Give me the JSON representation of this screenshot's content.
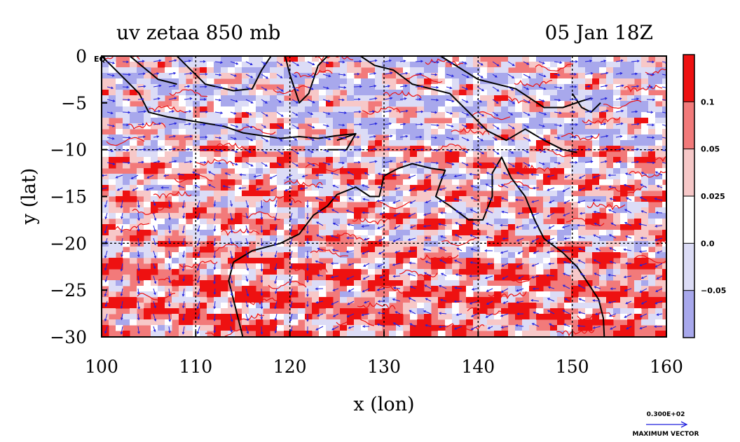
{
  "chart_data": {
    "type": "heatmap",
    "title_left": "uv zetaa 850 mb",
    "title_right": "05 Jan 18Z",
    "xlabel": "x (lon)",
    "ylabel": "y (lat)",
    "xlim": [
      100,
      160
    ],
    "ylim": [
      -30,
      0
    ],
    "x_ticks": [
      "100",
      "110",
      "120",
      "130",
      "140",
      "150",
      "160"
    ],
    "y_ticks": [
      "0",
      "−5",
      "−10",
      "−15",
      "−20",
      "−25",
      "−30"
    ],
    "corner_label": "EQ",
    "gridlines": true,
    "colorbar": {
      "levels": [
        "0.1",
        "0.05",
        "0.025",
        "0.0",
        "−0.05"
      ],
      "colors": [
        "#ee1111",
        "#f27a7a",
        "#f7c8c8",
        "#ffffff",
        "#dcdcf6",
        "#a8a8ec"
      ]
    },
    "vector_scale": {
      "value": "0.300E+02",
      "label": "MAXIMUM VECTOR"
    },
    "colors": {
      "strong_positive": "#ee1111",
      "positive": "#f27a7a",
      "weak_positive": "#f7c8c8",
      "neutral": "#ffffff",
      "weak_negative": "#dcdcf6",
      "negative": "#a8a8ec",
      "vectors": "#2222dd",
      "coastline": "#000000"
    }
  }
}
